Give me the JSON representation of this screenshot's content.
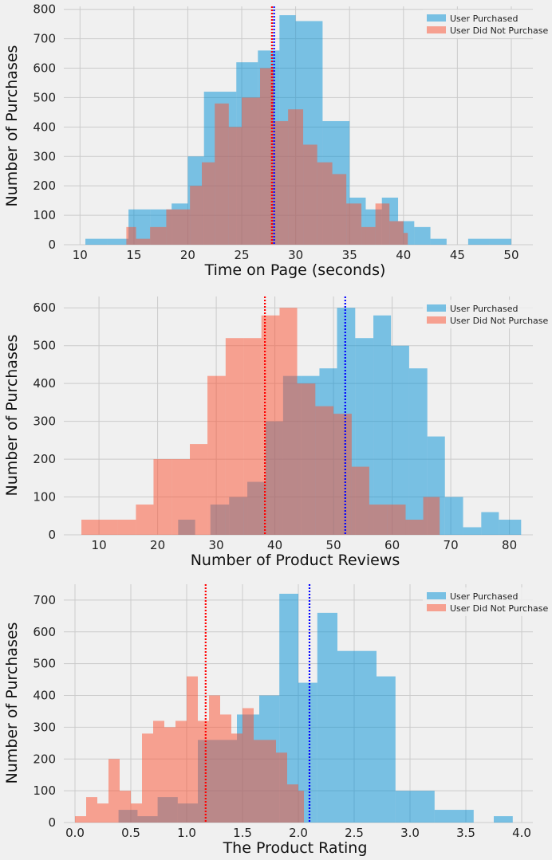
{
  "legend": {
    "purchased": "User Purchased",
    "not_purchased": "User Did Not Purchase"
  },
  "colors": {
    "purchased_fill": "#008fd5",
    "not_purchased_fill": "#fc4f30",
    "purchased_mean_line": "#0000ff",
    "not_purchased_mean_line": "#ff0000",
    "background": "#f0f0f0",
    "grid": "#cbcbcb"
  },
  "chart_data": [
    {
      "type": "histogram",
      "xlabel": "Time on Page (seconds)",
      "ylabel": "Number of Purchases",
      "xlim": [
        8.5,
        52
      ],
      "ylim": [
        0,
        810
      ],
      "xticks": [
        10,
        15,
        20,
        25,
        30,
        35,
        40,
        45,
        50
      ],
      "yticks": [
        0,
        100,
        200,
        300,
        400,
        500,
        600,
        700,
        800
      ],
      "grid": true,
      "legend_position": "top-right",
      "series": [
        {
          "name": "User Purchased",
          "bins": [
            [
              10.5,
              12.5,
              20
            ],
            [
              12.5,
              14.5,
              20
            ],
            [
              14.5,
              16.5,
              120
            ],
            [
              16.5,
              18.5,
              120
            ],
            [
              18.5,
              20,
              140
            ],
            [
              20,
              21.5,
              300
            ],
            [
              21.5,
              24.5,
              520
            ],
            [
              24.5,
              26.5,
              620
            ],
            [
              26.5,
              28.5,
              660
            ],
            [
              28.5,
              30,
              780
            ],
            [
              30,
              32.5,
              760
            ],
            [
              32.5,
              35,
              420
            ],
            [
              35,
              36.5,
              160
            ],
            [
              36.5,
              38,
              120
            ],
            [
              38,
              39.5,
              160
            ],
            [
              39.5,
              41,
              80
            ],
            [
              41,
              42.5,
              60
            ],
            [
              42.5,
              44,
              20
            ],
            [
              44,
              46,
              0
            ],
            [
              46,
              48,
              20
            ],
            [
              48,
              50,
              20
            ]
          ],
          "mean": 28
        },
        {
          "name": "User Did Not Purchase",
          "bins": [
            [
              14.3,
              15.2,
              60
            ],
            [
              15.2,
              16.5,
              20
            ],
            [
              16.5,
              18,
              60
            ],
            [
              18,
              20.2,
              120
            ],
            [
              20.2,
              21.3,
              200
            ],
            [
              21.3,
              22.5,
              280
            ],
            [
              22.5,
              23.8,
              480
            ],
            [
              23.8,
              25,
              400
            ],
            [
              25,
              26.7,
              500
            ],
            [
              26.7,
              28,
              600
            ],
            [
              28,
              29.3,
              420
            ],
            [
              29.3,
              30.7,
              460
            ],
            [
              30.7,
              32,
              340
            ],
            [
              32,
              33.4,
              280
            ],
            [
              33.4,
              34.7,
              240
            ],
            [
              34.7,
              36.1,
              140
            ],
            [
              36.1,
              37.4,
              60
            ],
            [
              37.4,
              38.7,
              140
            ],
            [
              38.7,
              40,
              80
            ],
            [
              40,
              40.4,
              40
            ]
          ],
          "mean": 27.8
        }
      ]
    },
    {
      "type": "histogram",
      "xlabel": "Number of Product Reviews",
      "ylabel": "Number of Purchases",
      "xlim": [
        4,
        84
      ],
      "ylim": [
        0,
        630
      ],
      "xticks": [
        10,
        20,
        30,
        40,
        50,
        60,
        70,
        80
      ],
      "yticks": [
        0,
        100,
        200,
        300,
        400,
        500,
        600
      ],
      "grid": true,
      "legend_position": "top-right",
      "series": [
        {
          "name": "User Purchased",
          "bins": [
            [
              23.5,
              26.4,
              40
            ],
            [
              26.4,
              29,
              0
            ],
            [
              29,
              32.2,
              80
            ],
            [
              32.2,
              35.3,
              100
            ],
            [
              35.3,
              38.4,
              140
            ],
            [
              38.4,
              41.4,
              300
            ],
            [
              41.4,
              44.5,
              420
            ],
            [
              44.5,
              47.6,
              420
            ],
            [
              47.6,
              50.6,
              440
            ],
            [
              50.6,
              53.7,
              600
            ],
            [
              53.7,
              56.8,
              520
            ],
            [
              56.8,
              59.8,
              580
            ],
            [
              59.8,
              62.9,
              500
            ],
            [
              62.9,
              66,
              440
            ],
            [
              66,
              69,
              260
            ],
            [
              69,
              72.1,
              100
            ],
            [
              72.1,
              75.2,
              20
            ],
            [
              75.2,
              78.2,
              60
            ],
            [
              78.2,
              82,
              40
            ]
          ],
          "mean": 52
        },
        {
          "name": "User Did Not Purchase",
          "bins": [
            [
              7,
              10,
              40
            ],
            [
              10,
              13.2,
              40
            ],
            [
              13.2,
              16.3,
              40
            ],
            [
              16.3,
              19.3,
              80
            ],
            [
              19.3,
              22.4,
              200
            ],
            [
              22.4,
              25.5,
              200
            ],
            [
              25.5,
              28.5,
              240
            ],
            [
              28.5,
              31.6,
              420
            ],
            [
              31.6,
              34.7,
              520
            ],
            [
              34.7,
              37.7,
              520
            ],
            [
              37.7,
              40.8,
              580
            ],
            [
              40.8,
              43.8,
              600
            ],
            [
              43.8,
              46.9,
              400
            ],
            [
              46.9,
              50,
              340
            ],
            [
              50,
              53.1,
              320
            ],
            [
              53.1,
              56.1,
              180
            ],
            [
              56.1,
              59.2,
              80
            ],
            [
              59.2,
              62.3,
              80
            ],
            [
              62.3,
              65.3,
              40
            ],
            [
              65.3,
              68.1,
              100
            ]
          ],
          "mean": 38.3
        }
      ]
    },
    {
      "type": "histogram",
      "xlabel": "The Product Rating",
      "ylabel": "Number of Purchases",
      "xlim": [
        -0.1,
        4.1
      ],
      "ylim": [
        0,
        750
      ],
      "xticks": [
        0.0,
        0.5,
        1.0,
        1.5,
        2.0,
        2.5,
        3.0,
        3.5,
        4.0
      ],
      "yticks": [
        0,
        100,
        200,
        300,
        400,
        500,
        600,
        700
      ],
      "grid": true,
      "legend_position": "top-right",
      "series": [
        {
          "name": "User Purchased",
          "bins": [
            [
              0.39,
              0.56,
              40
            ],
            [
              0.56,
              0.74,
              20
            ],
            [
              0.74,
              0.92,
              80
            ],
            [
              0.92,
              1.1,
              60
            ],
            [
              1.1,
              1.45,
              260
            ],
            [
              1.45,
              1.55,
              340
            ],
            [
              1.55,
              1.65,
              340
            ],
            [
              1.65,
              1.83,
              400
            ],
            [
              1.83,
              2.0,
              720
            ],
            [
              2.0,
              2.17,
              440
            ],
            [
              2.17,
              2.35,
              660
            ],
            [
              2.35,
              2.7,
              540
            ],
            [
              2.7,
              2.87,
              460
            ],
            [
              2.87,
              3.22,
              100
            ],
            [
              3.22,
              3.4,
              40
            ],
            [
              3.4,
              3.57,
              40
            ],
            [
              3.75,
              3.92,
              20
            ]
          ],
          "mean": 2.1
        },
        {
          "name": "User Did Not Purchase",
          "bins": [
            [
              0.0,
              0.1,
              20
            ],
            [
              0.1,
              0.2,
              80
            ],
            [
              0.2,
              0.3,
              60
            ],
            [
              0.3,
              0.4,
              200
            ],
            [
              0.4,
              0.5,
              100
            ],
            [
              0.5,
              0.6,
              60
            ],
            [
              0.6,
              0.7,
              280
            ],
            [
              0.7,
              0.8,
              320
            ],
            [
              0.8,
              0.9,
              300
            ],
            [
              0.9,
              1.0,
              320
            ],
            [
              1.0,
              1.1,
              460
            ],
            [
              1.1,
              1.2,
              320
            ],
            [
              1.2,
              1.3,
              400
            ],
            [
              1.3,
              1.4,
              340
            ],
            [
              1.4,
              1.5,
              280
            ],
            [
              1.5,
              1.6,
              360
            ],
            [
              1.6,
              1.7,
              260
            ],
            [
              1.7,
              1.8,
              260
            ],
            [
              1.8,
              1.9,
              220
            ],
            [
              1.9,
              2.0,
              120
            ],
            [
              2.0,
              2.05,
              100
            ]
          ],
          "mean": 1.17
        }
      ]
    }
  ]
}
